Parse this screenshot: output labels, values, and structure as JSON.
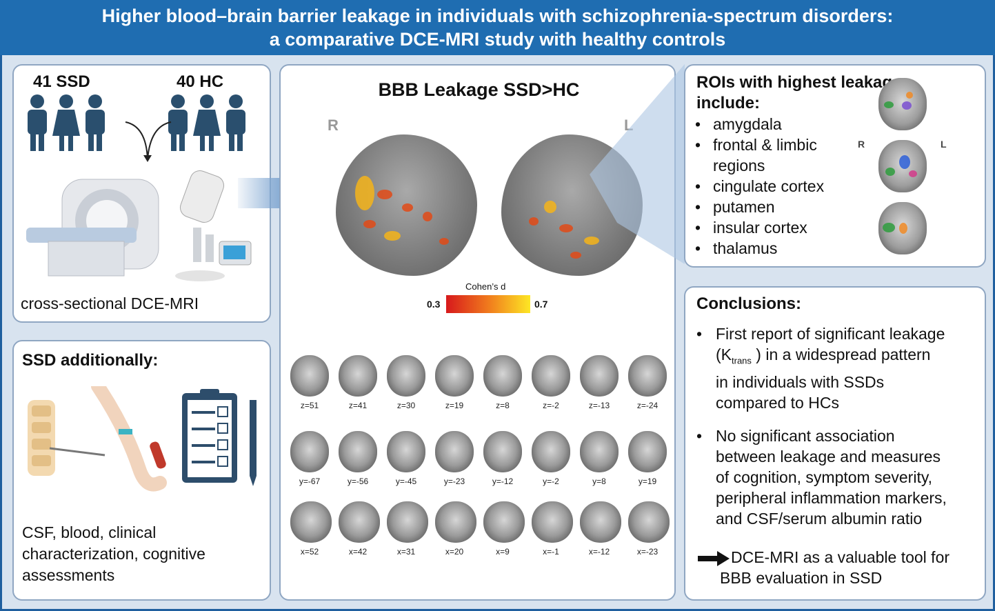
{
  "header": {
    "line1": "Higher blood–brain barrier leakage in individuals with schizophrenia-spectrum disorders:",
    "line2": "a comparative DCE-MRI study with healthy controls"
  },
  "groups": {
    "ssd_label": "41 SSD",
    "hc_label": "40 HC"
  },
  "study_design": "cross-sectional DCE-MRI",
  "ssd_additional": {
    "title": "SSD additionally:",
    "text_line1": "CSF, blood, clinical",
    "text_line2": "characterization, cognitive",
    "text_line3": "assessments"
  },
  "center": {
    "title": "BBB Leakage SSD>HC",
    "right_label": "R",
    "left_label": "L",
    "colorbar": {
      "title": "Cohen’s d",
      "min": "0.3",
      "max": "0.7",
      "min_color": "#d7191c",
      "max_color": "#fde725"
    },
    "axial_labels": [
      "z=51",
      "z=41",
      "z=30",
      "z=19",
      "z=8",
      "z=-2",
      "z=-13",
      "z=-24"
    ],
    "coronal_labels": [
      "y=-67",
      "y=-56",
      "y=-45",
      "y=-23",
      "y=-12",
      "y=-2",
      "y=8",
      "y=19"
    ],
    "sagittal_labels": [
      "x=52",
      "x=42",
      "x=31",
      "x=20",
      "x=9",
      "x=-1",
      "x=-12",
      "x=-23"
    ]
  },
  "roi": {
    "title_line1": "ROIs with highest leakage",
    "title_line2": "include:",
    "items": [
      "amygdala",
      "frontal & limbic",
      "regions",
      "cingulate cortex",
      "putamen",
      "insular cortex",
      "thalamus"
    ],
    "r_label": "R",
    "l_label": "L"
  },
  "conclusions": {
    "title": "Conclusions:",
    "b1_l1": "First report of significant leakage",
    "b1_l2a": "(K",
    "b1_sub": "trans",
    "b1_l2b": " ) in a widespread pattern",
    "b1_l3": "in individuals with SSDs",
    "b1_l4": "compared to HCs",
    "b2_l1": "No significant association",
    "b2_l2": "between leakage and measures",
    "b2_l3": "of cognition, symptom severity,",
    "b2_l4": "peripheral inflammation markers,",
    "b2_l5": "and  CSF/serum albumin ratio",
    "final_l1": "DCE-MRI as a valuable tool for",
    "final_l2": "BBB evaluation in SSD"
  },
  "colors": {
    "header_bg": "#1f6db1",
    "person": "#2a4f6e",
    "panel_border": "#8fa6c2",
    "arrow": "#7fa6d1"
  }
}
